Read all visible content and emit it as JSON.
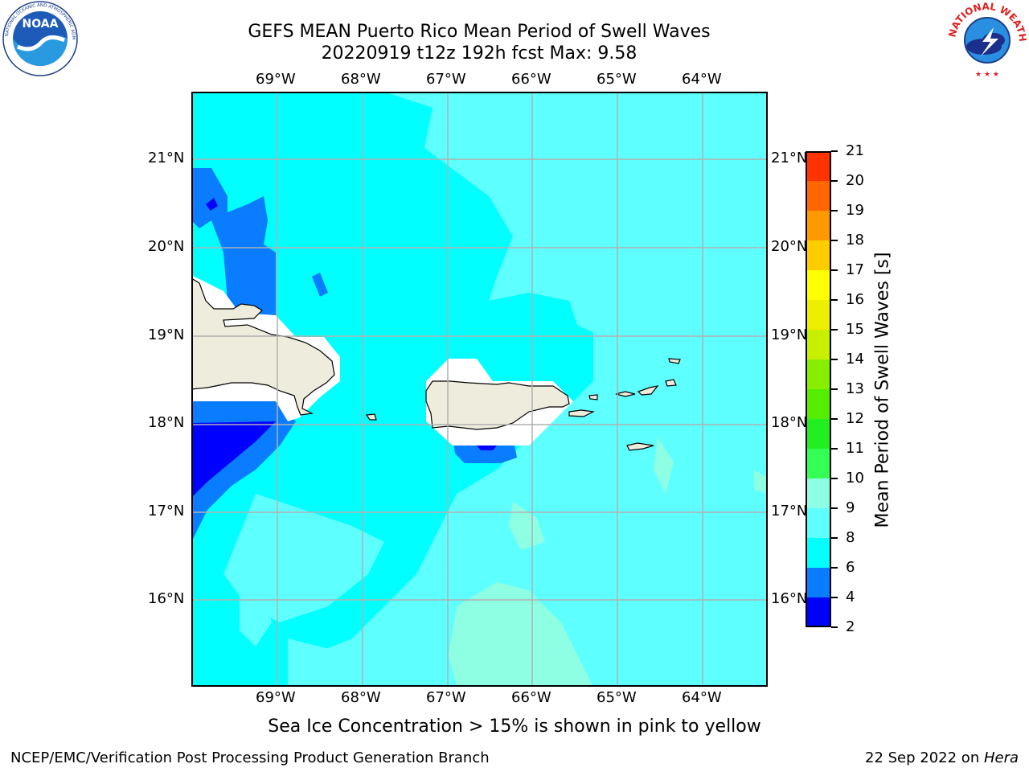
{
  "title": {
    "line1": "GEFS MEAN Puerto Rico Mean Period of Swell Waves",
    "line2": "20220919 t12z 192h fcst   Max: 9.58"
  },
  "logos": {
    "left": {
      "name": "noaa-logo",
      "text": "NOAA",
      "ring": "NATIONAL OCEANIC AND ATMOSPHERIC ADMINISTRATION · U.S. DEPARTMENT OF COMMERCE"
    },
    "right": {
      "name": "nws-logo",
      "ring": "NATIONAL WEATHER SERVICE"
    }
  },
  "map": {
    "lon_labels": [
      "69°W",
      "68°W",
      "67°W",
      "66°W",
      "65°W",
      "64°W"
    ],
    "lat_labels": [
      "21°N",
      "20°N",
      "19°N",
      "18°N",
      "17°N",
      "16°N"
    ],
    "land_color": "#eeecdc"
  },
  "colorbar": {
    "label": "Mean Period of Swell Waves [s]",
    "ticks": [
      "2",
      "4",
      "6",
      "8",
      "9",
      "10",
      "11",
      "12",
      "13",
      "14",
      "15",
      "16",
      "17",
      "18",
      "19",
      "20",
      "21"
    ],
    "colors": [
      "#0000ff",
      "#0a7cff",
      "#00ffff",
      "#5effff",
      "#8fffe3",
      "#33ff55",
      "#22ee22",
      "#55ee00",
      "#88ee00",
      "#c8ee00",
      "#eeee00",
      "#ffff00",
      "#ffcc00",
      "#ff9900",
      "#ff6600",
      "#ff3300",
      "#ff0000"
    ]
  },
  "footer": {
    "note": "Sea Ice Concentration > 15% is shown in pink to yellow",
    "left": "NCEP/EMC/Verification Post Processing Product Generation Branch",
    "right_date": "22 Sep 2022 on ",
    "right_host": "Hera"
  }
}
